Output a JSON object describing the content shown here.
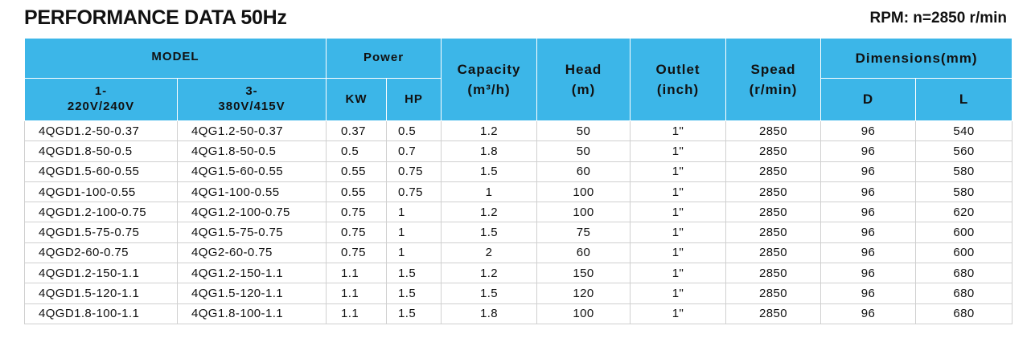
{
  "header": {
    "title": "PERFORMANCE DATA 50Hz",
    "rpm": "RPM: n=2850 r/min"
  },
  "table": {
    "header": {
      "model": "MODEL",
      "power": "Power",
      "capacity": {
        "name": "Capacity",
        "unit": "(m³/h)"
      },
      "head": {
        "name": "Head",
        "unit": "(m)"
      },
      "outlet": {
        "name": "Outlet",
        "unit": "(inch)"
      },
      "speed": {
        "name": "Spead",
        "unit": "(r/min)"
      },
      "dimensions": "Dimensions(mm)",
      "sub": {
        "single_phase": [
          "1-",
          "220V/240V"
        ],
        "three_phase": [
          "3-",
          "380V/415V"
        ],
        "kw": "KW",
        "hp": "HP",
        "d": "D",
        "l": "L"
      }
    },
    "rows": [
      [
        "4QGD1.2-50-0.37",
        "4QG1.2-50-0.37",
        "0.37",
        "0.5",
        "1.2",
        "50",
        "1\"",
        "2850",
        "96",
        "540"
      ],
      [
        "4QGD1.8-50-0.5",
        "4QG1.8-50-0.5",
        "0.5",
        "0.7",
        "1.8",
        "50",
        "1\"",
        "2850",
        "96",
        "560"
      ],
      [
        "4QGD1.5-60-0.55",
        "4QG1.5-60-0.55",
        "0.55",
        "0.75",
        "1.5",
        "60",
        "1\"",
        "2850",
        "96",
        "580"
      ],
      [
        "4QGD1-100-0.55",
        "4QG1-100-0.55",
        "0.55",
        "0.75",
        "1",
        "100",
        "1\"",
        "2850",
        "96",
        "580"
      ],
      [
        "4QGD1.2-100-0.75",
        "4QG1.2-100-0.75",
        "0.75",
        "1",
        "1.2",
        "100",
        "1\"",
        "2850",
        "96",
        "620"
      ],
      [
        "4QGD1.5-75-0.75",
        "4QG1.5-75-0.75",
        "0.75",
        "1",
        "1.5",
        "75",
        "1\"",
        "2850",
        "96",
        "600"
      ],
      [
        "4QGD2-60-0.75",
        "4QG2-60-0.75",
        "0.75",
        "1",
        "2",
        "60",
        "1\"",
        "2850",
        "96",
        "600"
      ],
      [
        "4QGD1.2-150-1.1",
        "4QG1.2-150-1.1",
        "1.1",
        "1.5",
        "1.2",
        "150",
        "1\"",
        "2850",
        "96",
        "680"
      ],
      [
        "4QGD1.5-120-1.1",
        "4QG1.5-120-1.1",
        "1.1",
        "1.5",
        "1.5",
        "120",
        "1\"",
        "2850",
        "96",
        "680"
      ],
      [
        "4QGD1.8-100-1.1",
        "4QG1.8-100-1.1",
        "1.1",
        "1.5",
        "1.8",
        "100",
        "1\"",
        "2850",
        "96",
        "680"
      ]
    ]
  }
}
